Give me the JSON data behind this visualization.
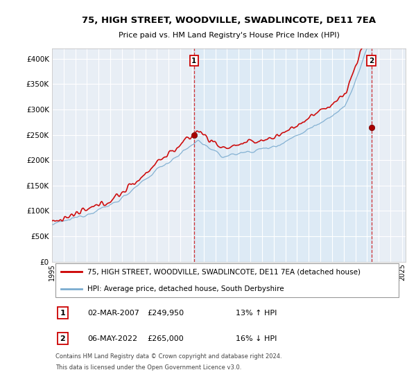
{
  "title": "75, HIGH STREET, WOODVILLE, SWADLINCOTE, DE11 7EA",
  "subtitle": "Price paid vs. HM Land Registry's House Price Index (HPI)",
  "ytick_values": [
    0,
    50000,
    100000,
    150000,
    200000,
    250000,
    300000,
    350000,
    400000
  ],
  "ylim": [
    0,
    420000
  ],
  "xlim_start": 1995.0,
  "xlim_end": 2025.3,
  "line1_color": "#cc0000",
  "line2_color": "#7aabcf",
  "fill_color": "#d6e8f5",
  "sale1_x": 2007.17,
  "sale1_y": 249950,
  "sale2_x": 2022.36,
  "sale2_y": 265000,
  "legend_line1": "75, HIGH STREET, WOODVILLE, SWADLINCOTE, DE11 7EA (detached house)",
  "legend_line2": "HPI: Average price, detached house, South Derbyshire",
  "table_row1": [
    "1",
    "02-MAR-2007",
    "£249,950",
    "13% ↑ HPI"
  ],
  "table_row2": [
    "2",
    "06-MAY-2022",
    "£265,000",
    "16% ↓ HPI"
  ],
  "footnote1": "Contains HM Land Registry data © Crown copyright and database right 2024.",
  "footnote2": "This data is licensed under the Open Government Licence v3.0.",
  "background_color": "#ffffff",
  "chart_bg_color": "#e8eef5",
  "grid_color": "#ffffff"
}
